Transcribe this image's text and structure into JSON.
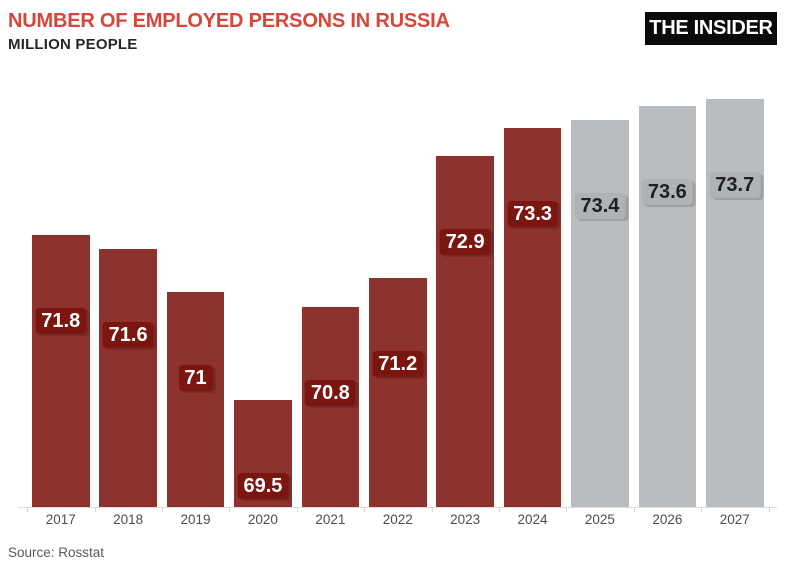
{
  "header": {
    "title": "NUMBER OF EMPLOYED PERSONS IN RUSSIA",
    "subtitle": "MILLION PEOPLE",
    "logo_text": "THE INSIDER",
    "accent_color": "#d8463a",
    "logo_bg": "#0a0a0a",
    "logo_text_color": "#ffffff"
  },
  "chart_data": {
    "type": "bar",
    "title": "NUMBER OF EMPLOYED PERSONS IN RUSSIA",
    "ylabel": "MILLION PEOPLE",
    "xlabel": "",
    "categories": [
      "2017",
      "2018",
      "2019",
      "2020",
      "2021",
      "2022",
      "2023",
      "2024",
      "2025",
      "2026",
      "2027"
    ],
    "values": [
      71.8,
      71.6,
      71,
      69.5,
      70.8,
      71.2,
      72.9,
      73.3,
      73.4,
      73.6,
      73.7
    ],
    "value_labels": [
      "71.8",
      "71.6",
      "71",
      "69.5",
      "70.8",
      "71.2",
      "72.9",
      "73.3",
      "73.4",
      "73.6",
      "73.7"
    ],
    "is_forecast": [
      false,
      false,
      false,
      false,
      false,
      false,
      false,
      false,
      true,
      true,
      true
    ],
    "ylim": [
      68,
      74
    ],
    "grid": false,
    "legend_position": "none",
    "colors": {
      "bar_actual": "#8e322e",
      "bar_forecast": "#babdbf",
      "label_bg_actual": "#7b150f",
      "label_text_actual": "#ffffff",
      "label_bg_forecast": "#b0b3b6",
      "label_text_forecast": "#1f1f1f",
      "axis_text": "#4d4d4d"
    }
  },
  "source": {
    "label": "Source: Rosstat"
  }
}
